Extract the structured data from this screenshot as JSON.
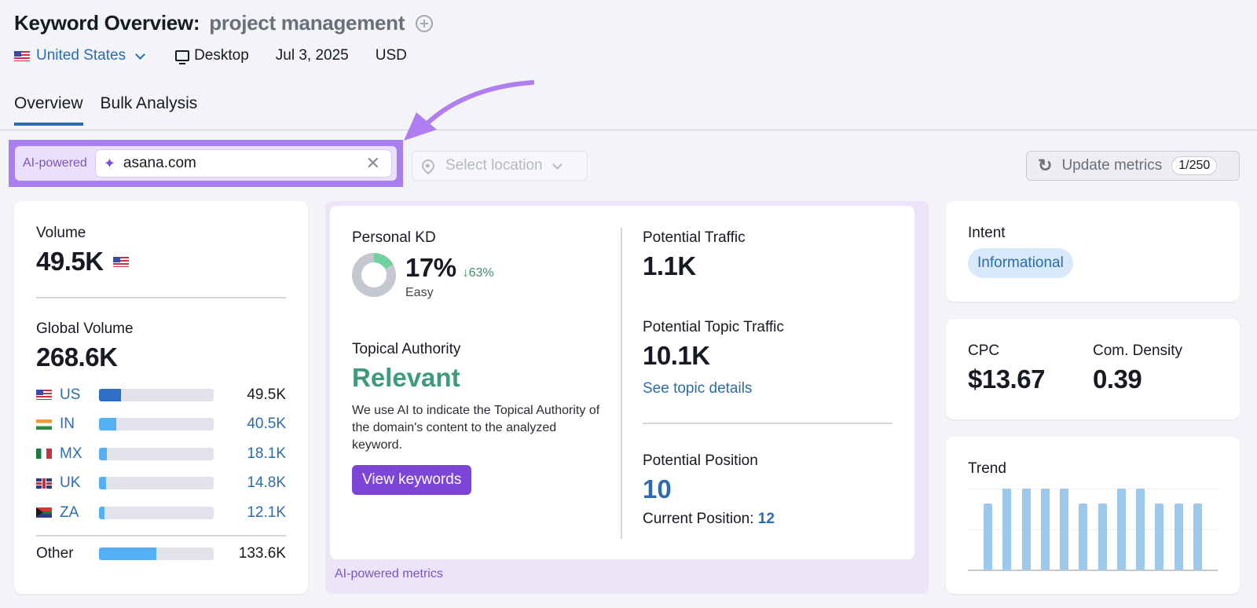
{
  "header": {
    "title": "Keyword Overview:",
    "keyword": "project management",
    "country": "United States",
    "device": "Desktop",
    "date": "Jul 3, 2025",
    "currency": "USD"
  },
  "tabs": [
    {
      "label": "Overview",
      "active": true
    },
    {
      "label": "Bulk Analysis",
      "active": false
    }
  ],
  "toolbar": {
    "ai_label": "AI-powered",
    "domain_input_value": "asana.com",
    "location_placeholder": "Select location",
    "update_label": "Update metrics",
    "update_count": "1/250"
  },
  "volume_card": {
    "volume_label": "Volume",
    "volume_value": "49.5K",
    "global_label": "Global Volume",
    "global_value": "268.6K",
    "countries": [
      {
        "code": "US",
        "value": "49.5K",
        "fill_pct": 19
      },
      {
        "code": "IN",
        "value": "40.5K",
        "fill_pct": 15
      },
      {
        "code": "MX",
        "value": "18.1K",
        "fill_pct": 7
      },
      {
        "code": "UK",
        "value": "14.8K",
        "fill_pct": 6
      },
      {
        "code": "ZA",
        "value": "12.1K",
        "fill_pct": 5
      }
    ],
    "other": {
      "label": "Other",
      "value": "133.6K",
      "fill_pct": 50
    }
  },
  "ai_metrics": {
    "kd_label": "Personal KD",
    "kd_value": "17%",
    "kd_delta": "↓63%",
    "kd_level": "Easy",
    "ta_label": "Topical Authority",
    "ta_value": "Relevant",
    "ta_description": "We use AI to indicate the Topical Authority of the domain's content to the analyzed keyword.",
    "view_keywords": "View keywords",
    "pt_label": "Potential Traffic",
    "pt_value": "1.1K",
    "ptt_label": "Potential Topic Traffic",
    "ptt_value": "10.1K",
    "topic_link": "See topic details",
    "pp_label": "Potential Position",
    "pp_value": "10",
    "current_pos_label": "Current Position:",
    "current_pos_value": "12",
    "footer": "AI-powered metrics"
  },
  "intent": {
    "label": "Intent",
    "value": "Informational"
  },
  "cpc": {
    "label": "CPC",
    "value": "$13.67",
    "density_label": "Com. Density",
    "density_value": "0.39"
  },
  "trend": {
    "label": "Trend",
    "values": [
      82,
      100,
      100,
      100,
      100,
      82,
      82,
      100,
      100,
      82,
      82,
      82
    ]
  }
}
